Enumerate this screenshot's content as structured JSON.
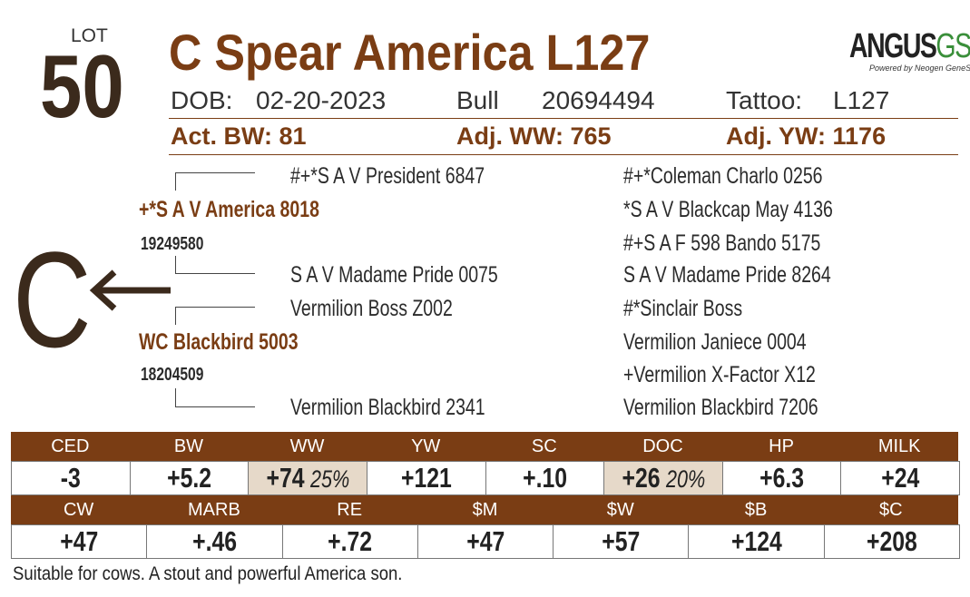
{
  "lot": {
    "label": "LOT",
    "number": "50"
  },
  "name": "C Spear America L127",
  "logo": {
    "brand": "ANGUS",
    "suffix": "GS",
    "tagline": "Powered by Neogen GeneSeek"
  },
  "info": {
    "dob_label": "DOB:",
    "dob": "02-20-2023",
    "sex": "Bull",
    "registration": "20694494",
    "tattoo_label": "Tattoo:",
    "tattoo": "L127"
  },
  "weights": [
    "Act. BW: 81",
    "Adj. WW: 765",
    "Adj. YW: 1176"
  ],
  "brand": "C",
  "pedigree": {
    "sire": {
      "name": "+*S A V America 8018",
      "registration": "19249580"
    },
    "dam": {
      "name": "WC Blackbird 5003",
      "registration": "18204509"
    },
    "sire_sire": "#+*S A V President 6847",
    "sire_dam": "S A V Madame Pride 0075",
    "dam_sire": "Vermilion Boss Z002",
    "dam_dam": "Vermilion Blackbird 2341",
    "outer": [
      "#+*Coleman Charlo 0256",
      "*S A V Blackcap May 4136",
      "#+S A F 598 Bando 5175",
      "S A V Madame Pride 8264",
      "#*Sinclair Boss",
      "Vermilion Janiece 0004",
      "+Vermilion X-Factor X12",
      "Vermilion Blackbird 7206"
    ]
  },
  "epd_rows": [
    {
      "headers": [
        "CED",
        "BW",
        "WW",
        "YW",
        "SC",
        "DOC",
        "HP",
        "MILK"
      ],
      "values": [
        "-3",
        "+5.2",
        "+74",
        "+121",
        "+.10",
        "+26",
        "+6.3",
        "+24"
      ],
      "percentiles": [
        null,
        null,
        "25%",
        null,
        null,
        "20%",
        null,
        null
      ]
    },
    {
      "headers": [
        "CW",
        "MARB",
        "RE",
        "$M",
        "$W",
        "$B",
        "$C"
      ],
      "values": [
        "+47",
        "+.46",
        "+.72",
        "+47",
        "+57",
        "+124",
        "+208"
      ],
      "percentiles": [
        null,
        null,
        null,
        null,
        null,
        null,
        null
      ]
    }
  ],
  "comment": "Suitable for cows. A stout and powerful America son."
}
